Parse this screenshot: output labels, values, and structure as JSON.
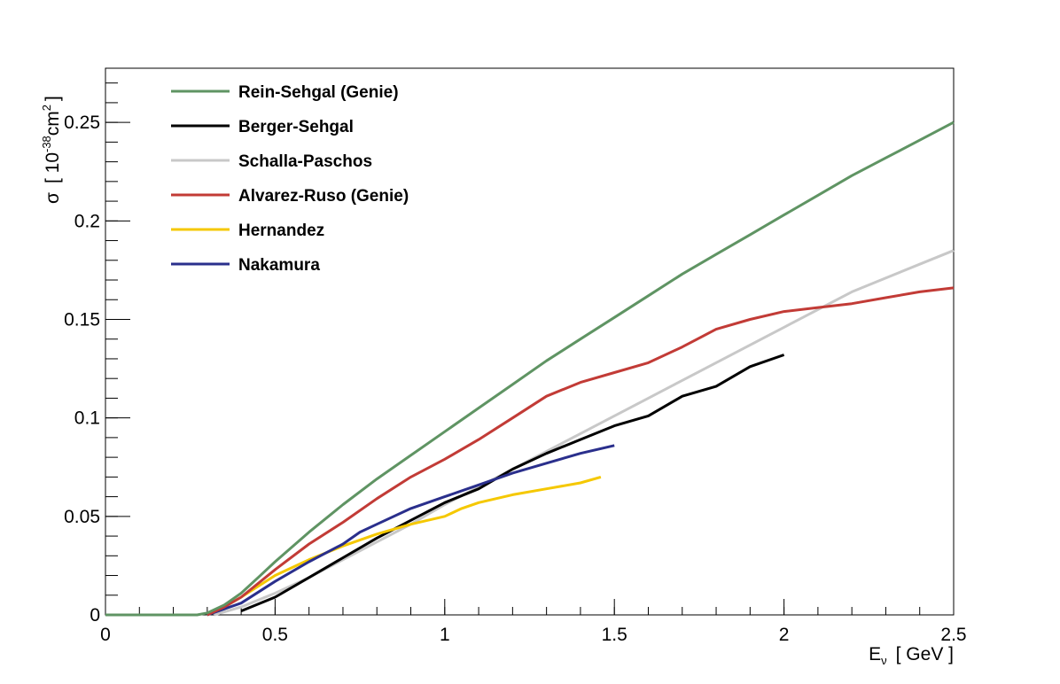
{
  "chart_data": {
    "type": "line",
    "title": "",
    "xlabel": {
      "main": "E",
      "sub": "ν",
      "units": "[ GeV ]"
    },
    "ylabel": {
      "main": "σ",
      "open": "[ 10",
      "exp1": "-38",
      "unit": "cm",
      "exp2": "2",
      "close": "]"
    },
    "xlim": [
      0,
      2.5
    ],
    "ylim": [
      0,
      0.2775
    ],
    "xticks": [
      0,
      0.5,
      1,
      1.5,
      2,
      2.5
    ],
    "xtick_labels": [
      "0",
      "0.5",
      "1",
      "1.5",
      "2",
      "2.5"
    ],
    "yticks": [
      0,
      0.05,
      0.1,
      0.15,
      0.2,
      0.25
    ],
    "ytick_labels": [
      "0",
      "0.05",
      "0.1",
      "0.15",
      "0.2",
      "0.25"
    ],
    "grid": false,
    "legend_position": "top-left",
    "series": [
      {
        "name": "Rein-Sehgal (Genie)",
        "color": "#5f9463",
        "x": [
          0,
          0.2,
          0.27,
          0.3,
          0.35,
          0.4,
          0.45,
          0.5,
          0.6,
          0.7,
          0.8,
          0.9,
          1.0,
          1.1,
          1.2,
          1.3,
          1.4,
          1.5,
          1.6,
          1.7,
          1.8,
          1.9,
          2.0,
          2.1,
          2.2,
          2.3,
          2.4,
          2.5
        ],
        "y": [
          0,
          0,
          0,
          0.001,
          0.005,
          0.011,
          0.019,
          0.027,
          0.042,
          0.056,
          0.069,
          0.081,
          0.093,
          0.105,
          0.117,
          0.129,
          0.14,
          0.151,
          0.162,
          0.173,
          0.183,
          0.193,
          0.203,
          0.213,
          0.223,
          0.232,
          0.241,
          0.25
        ]
      },
      {
        "name": "Berger-Sehgal",
        "color": "#000000",
        "x": [
          0.4,
          0.5,
          0.6,
          0.7,
          0.8,
          0.9,
          1.0,
          1.1,
          1.2,
          1.3,
          1.4,
          1.5,
          1.6,
          1.7,
          1.8,
          1.9,
          2.0
        ],
        "y": [
          0.002,
          0.009,
          0.019,
          0.029,
          0.039,
          0.048,
          0.057,
          0.064,
          0.074,
          0.082,
          0.089,
          0.096,
          0.101,
          0.111,
          0.116,
          0.126,
          0.132
        ]
      },
      {
        "name": "Schalla-Paschos",
        "color": "#c8c8c8",
        "x": [
          0.32,
          0.4,
          0.5,
          0.6,
          0.7,
          0.8,
          0.9,
          1.0,
          1.2,
          1.4,
          1.6,
          1.8,
          2.0,
          2.2,
          2.4,
          2.5
        ],
        "y": [
          0,
          0.004,
          0.011,
          0.019,
          0.028,
          0.037,
          0.046,
          0.056,
          0.074,
          0.092,
          0.11,
          0.128,
          0.146,
          0.164,
          0.178,
          0.185
        ]
      },
      {
        "name": "Alvarez-Ruso (Genie)",
        "color": "#c23b36",
        "x": [
          0.3,
          0.35,
          0.4,
          0.5,
          0.6,
          0.7,
          0.8,
          0.9,
          1.0,
          1.1,
          1.2,
          1.3,
          1.4,
          1.5,
          1.6,
          1.7,
          1.8,
          1.9,
          2.0,
          2.1,
          2.2,
          2.3,
          2.4,
          2.5
        ],
        "y": [
          0,
          0.004,
          0.009,
          0.023,
          0.036,
          0.047,
          0.059,
          0.07,
          0.079,
          0.089,
          0.1,
          0.111,
          0.118,
          0.123,
          0.128,
          0.136,
          0.145,
          0.15,
          0.154,
          0.156,
          0.158,
          0.161,
          0.164,
          0.166
        ]
      },
      {
        "name": "Hernandez",
        "color": "#f5c800",
        "x": [
          0.3,
          0.35,
          0.4,
          0.5,
          0.6,
          0.7,
          0.8,
          0.9,
          1.0,
          1.05,
          1.1,
          1.2,
          1.3,
          1.4,
          1.46
        ],
        "y": [
          0,
          0.004,
          0.009,
          0.02,
          0.028,
          0.035,
          0.041,
          0.046,
          0.05,
          0.054,
          0.057,
          0.061,
          0.064,
          0.067,
          0.07
        ]
      },
      {
        "name": "Nakamura",
        "color": "#2a2f8c",
        "x": [
          0.3,
          0.35,
          0.4,
          0.5,
          0.6,
          0.7,
          0.75,
          0.8,
          0.9,
          1.0,
          1.1,
          1.2,
          1.3,
          1.4,
          1.5
        ],
        "y": [
          0,
          0.003,
          0.006,
          0.017,
          0.027,
          0.036,
          0.042,
          0.046,
          0.054,
          0.06,
          0.066,
          0.072,
          0.077,
          0.082,
          0.086
        ]
      }
    ]
  }
}
